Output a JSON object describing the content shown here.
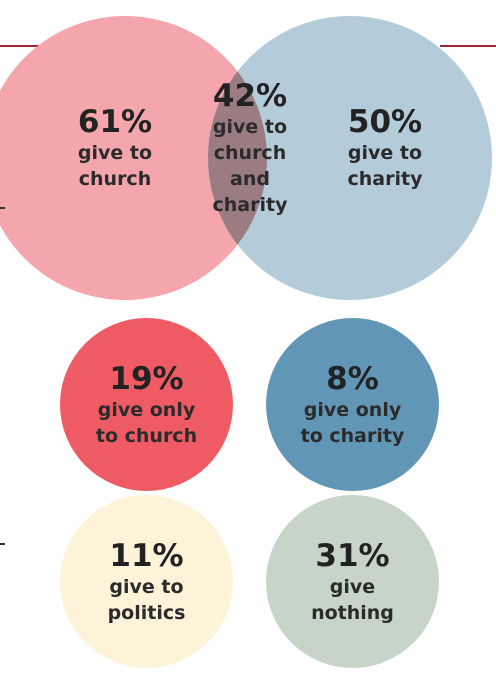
{
  "colors": {
    "church": "#f5a6ac",
    "charity": "#b4ccda",
    "overlap": "#9a7c82",
    "only_church": "#ee5b64",
    "only_charity": "#6196b6",
    "politics": "#fcf3d8",
    "nothing": "#c7d5c8",
    "rule": "#9a2a34"
  },
  "venn": {
    "church": {
      "pct": "61%",
      "line1": "give to",
      "line2": "church"
    },
    "overlap": {
      "pct": "42%",
      "line1": "give to",
      "line2": "church",
      "line3": "and",
      "line4": "charity"
    },
    "charity": {
      "pct": "50%",
      "line1": "give to",
      "line2": "charity"
    }
  },
  "circles": {
    "only_church": {
      "pct": "19%",
      "line1": "give only",
      "line2": "to church"
    },
    "only_charity": {
      "pct": "8%",
      "line1": "give only",
      "line2": "to charity"
    },
    "politics": {
      "pct": "11%",
      "line1": "give to",
      "line2": "politics"
    },
    "nothing": {
      "pct": "31%",
      "line1": "give",
      "line2": "nothing"
    }
  }
}
